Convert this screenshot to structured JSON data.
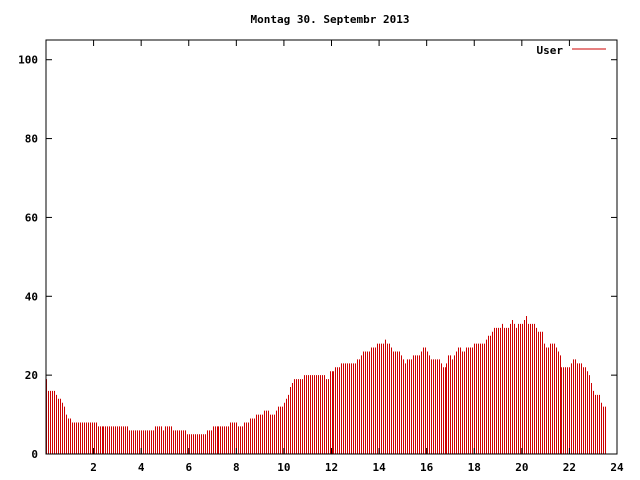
{
  "chart_data": {
    "type": "bar",
    "title": "Montag 30. Septembr 2013",
    "xlabel": "",
    "ylabel": "",
    "xlim": [
      0,
      24
    ],
    "ylim": [
      0,
      105
    ],
    "xticks": [
      "2",
      "4",
      "6",
      "8",
      "10",
      "12",
      "14",
      "16",
      "18",
      "20",
      "22",
      "24"
    ],
    "yticks": [
      "0",
      "20",
      "40",
      "60",
      "80",
      "100"
    ],
    "legend": {
      "position": "top-right"
    },
    "grid": false,
    "colors": {
      "series": "#cc0000",
      "axis": "#000000",
      "background": "#ffffff"
    },
    "series": [
      {
        "name": "User",
        "interval_minutes": 5,
        "values": [
          19,
          16,
          16,
          16,
          16,
          15,
          14,
          14,
          13,
          12,
          10,
          9,
          9,
          8,
          8,
          8,
          8,
          8,
          8,
          8,
          8,
          8,
          8,
          8,
          8,
          8,
          7,
          7,
          7,
          7,
          7,
          7,
          7,
          7,
          7,
          7,
          7,
          7,
          7,
          7,
          7,
          7,
          6,
          6,
          6,
          6,
          6,
          6,
          6,
          6,
          6,
          6,
          6,
          6,
          6,
          7,
          7,
          7,
          7,
          6,
          7,
          7,
          7,
          7,
          6,
          6,
          6,
          6,
          6,
          6,
          6,
          5,
          5,
          5,
          5,
          5,
          5,
          5,
          5,
          5,
          5,
          6,
          6,
          6,
          7,
          7,
          7,
          7,
          7,
          7,
          7,
          7,
          7,
          8,
          8,
          8,
          8,
          7,
          7,
          7,
          8,
          8,
          8,
          9,
          9,
          9,
          10,
          10,
          10,
          10,
          11,
          11,
          11,
          10,
          10,
          10,
          11,
          12,
          12,
          12,
          13,
          14,
          15,
          17,
          18,
          19,
          19,
          19,
          19,
          19,
          20,
          20,
          20,
          20,
          20,
          20,
          20,
          20,
          20,
          20,
          20,
          19,
          19,
          21,
          21,
          21,
          22,
          22,
          22,
          23,
          23,
          23,
          23,
          23,
          23,
          23,
          23,
          24,
          24,
          25,
          26,
          26,
          26,
          26,
          27,
          27,
          27,
          28,
          28,
          28,
          28,
          29,
          28,
          28,
          27,
          26,
          26,
          26,
          26,
          25,
          24,
          23,
          24,
          24,
          24,
          25,
          25,
          25,
          25,
          26,
          27,
          27,
          26,
          25,
          24,
          24,
          24,
          24,
          24,
          23,
          22,
          22,
          23,
          25,
          25,
          24,
          25,
          26,
          27,
          27,
          26,
          26,
          27,
          27,
          27,
          27,
          28,
          28,
          28,
          28,
          28,
          28,
          29,
          30,
          30,
          31,
          32,
          32,
          32,
          32,
          33,
          32,
          32,
          32,
          33,
          34,
          33,
          32,
          33,
          33,
          33,
          34,
          35,
          33,
          33,
          33,
          33,
          32,
          31,
          31,
          31,
          28,
          27,
          27,
          28,
          28,
          28,
          27,
          26,
          25,
          22,
          22,
          22,
          22,
          22,
          23,
          24,
          24,
          23,
          23,
          23,
          22,
          22,
          21,
          20,
          18,
          16,
          15,
          15,
          15,
          13,
          12,
          12
        ]
      }
    ]
  }
}
